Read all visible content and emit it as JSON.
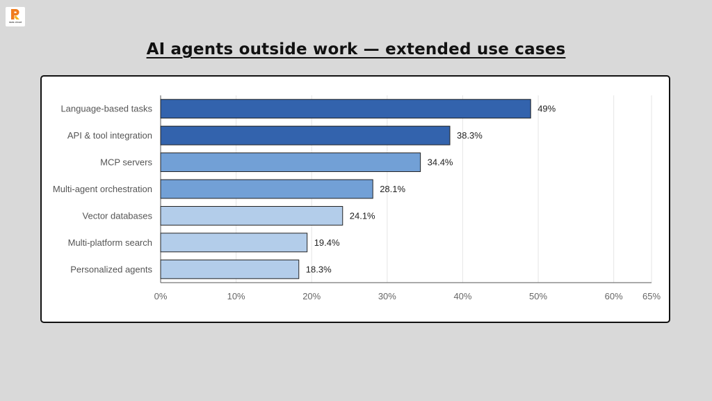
{
  "brand": {
    "logo_text": "raas cloud",
    "colors": {
      "logo_orange": "#f07c1e",
      "logo_yellow": "#f5b21f"
    }
  },
  "page": {
    "title": "AI agents outside work — extended use cases"
  },
  "chart_data": {
    "type": "bar",
    "orientation": "horizontal",
    "categories": [
      "Language-based tasks",
      "API & tool integration",
      "MCP servers",
      "Multi-agent orchestration",
      "Vector databases",
      "Multi-platform search",
      "Personalized agents"
    ],
    "values": [
      49,
      38.3,
      34.4,
      28.1,
      24.1,
      19.4,
      18.3
    ],
    "value_labels": [
      "49%",
      "38.3%",
      "34.4%",
      "28.1%",
      "24.1%",
      "19.4%",
      "18.3%"
    ],
    "bar_colors": [
      "#3363ad",
      "#3363ad",
      "#72a0d6",
      "#72a0d6",
      "#b3cdea",
      "#b3cdea",
      "#b3cdea"
    ],
    "xlim": [
      0,
      65
    ],
    "x_ticks": [
      0,
      10,
      20,
      30,
      40,
      50,
      60,
      65
    ],
    "x_tick_labels": [
      "0%",
      "10%",
      "20%",
      "30%",
      "40%",
      "50%",
      "60%",
      "65%"
    ],
    "grid": "vertical",
    "legend": "none",
    "title": "",
    "xlabel": "",
    "ylabel": ""
  }
}
